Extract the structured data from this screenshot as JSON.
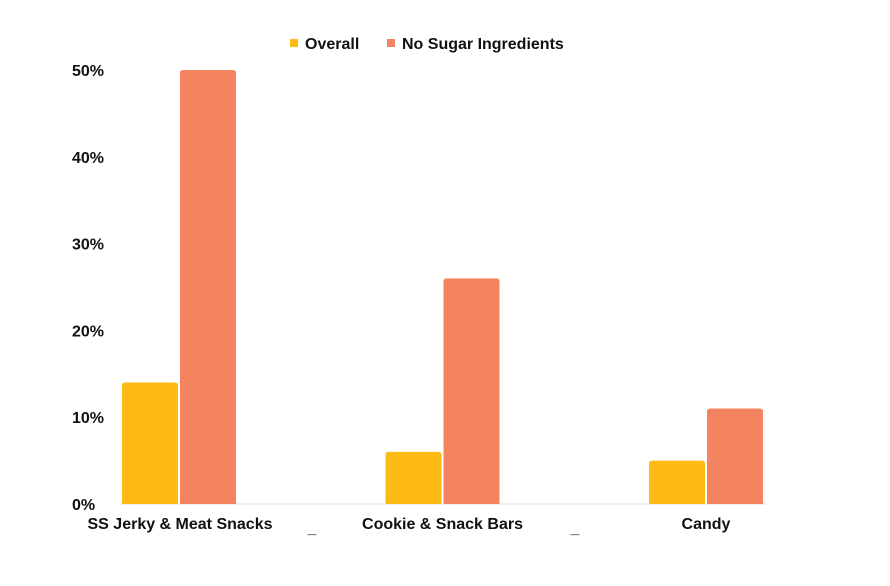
{
  "chart_data": {
    "type": "bar",
    "categories": [
      "SS Jerky & Meat Snacks",
      "Cookie & Snack Bars",
      "Candy"
    ],
    "series": [
      {
        "name": "Overall",
        "values": [
          14,
          6,
          5
        ],
        "color": "#FDBB13"
      },
      {
        "name": "No Sugar Ingredients",
        "values": [
          50,
          26,
          11
        ],
        "color": "#F4845F"
      }
    ],
    "yticks": [
      "0%",
      "10%",
      "20%",
      "30%",
      "40%",
      "50%"
    ],
    "ytick_values": [
      0,
      10,
      20,
      30,
      40,
      50
    ],
    "ylim": [
      0,
      50
    ],
    "separator_marks": [
      "_",
      "_"
    ],
    "legend_position": "top-center",
    "grid": false
  }
}
